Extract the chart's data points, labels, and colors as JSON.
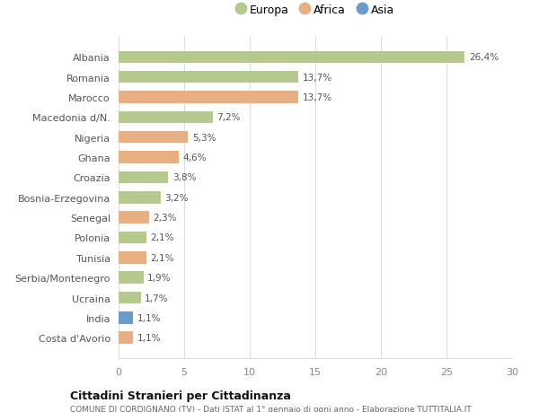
{
  "countries": [
    "Albania",
    "Romania",
    "Marocco",
    "Macedonia d/N.",
    "Nigeria",
    "Ghana",
    "Croazia",
    "Bosnia-Erzegovina",
    "Senegal",
    "Polonia",
    "Tunisia",
    "Serbia/Montenegro",
    "Ucraina",
    "India",
    "Costa d'Avorio"
  ],
  "values": [
    26.4,
    13.7,
    13.7,
    7.2,
    5.3,
    4.6,
    3.8,
    3.2,
    2.3,
    2.1,
    2.1,
    1.9,
    1.7,
    1.1,
    1.1
  ],
  "labels": [
    "26,4%",
    "13,7%",
    "13,7%",
    "7,2%",
    "5,3%",
    "4,6%",
    "3,8%",
    "3,2%",
    "2,3%",
    "2,1%",
    "2,1%",
    "1,9%",
    "1,7%",
    "1,1%",
    "1,1%"
  ],
  "continents": [
    "Europa",
    "Europa",
    "Africa",
    "Europa",
    "Africa",
    "Africa",
    "Europa",
    "Europa",
    "Africa",
    "Europa",
    "Africa",
    "Europa",
    "Europa",
    "Asia",
    "Africa"
  ],
  "colors": {
    "Europa": "#b5c98e",
    "Africa": "#e8b080",
    "Asia": "#6a9cc9"
  },
  "title": "Cittadini Stranieri per Cittadinanza",
  "subtitle": "COMUNE DI CORDIGNANO (TV) - Dati ISTAT al 1° gennaio di ogni anno - Elaborazione TUTTITALIA.IT",
  "xlim": [
    0,
    30
  ],
  "xticks": [
    0,
    5,
    10,
    15,
    20,
    25,
    30
  ],
  "background_color": "#ffffff",
  "bar_height": 0.6,
  "grid_color": "#dddddd"
}
